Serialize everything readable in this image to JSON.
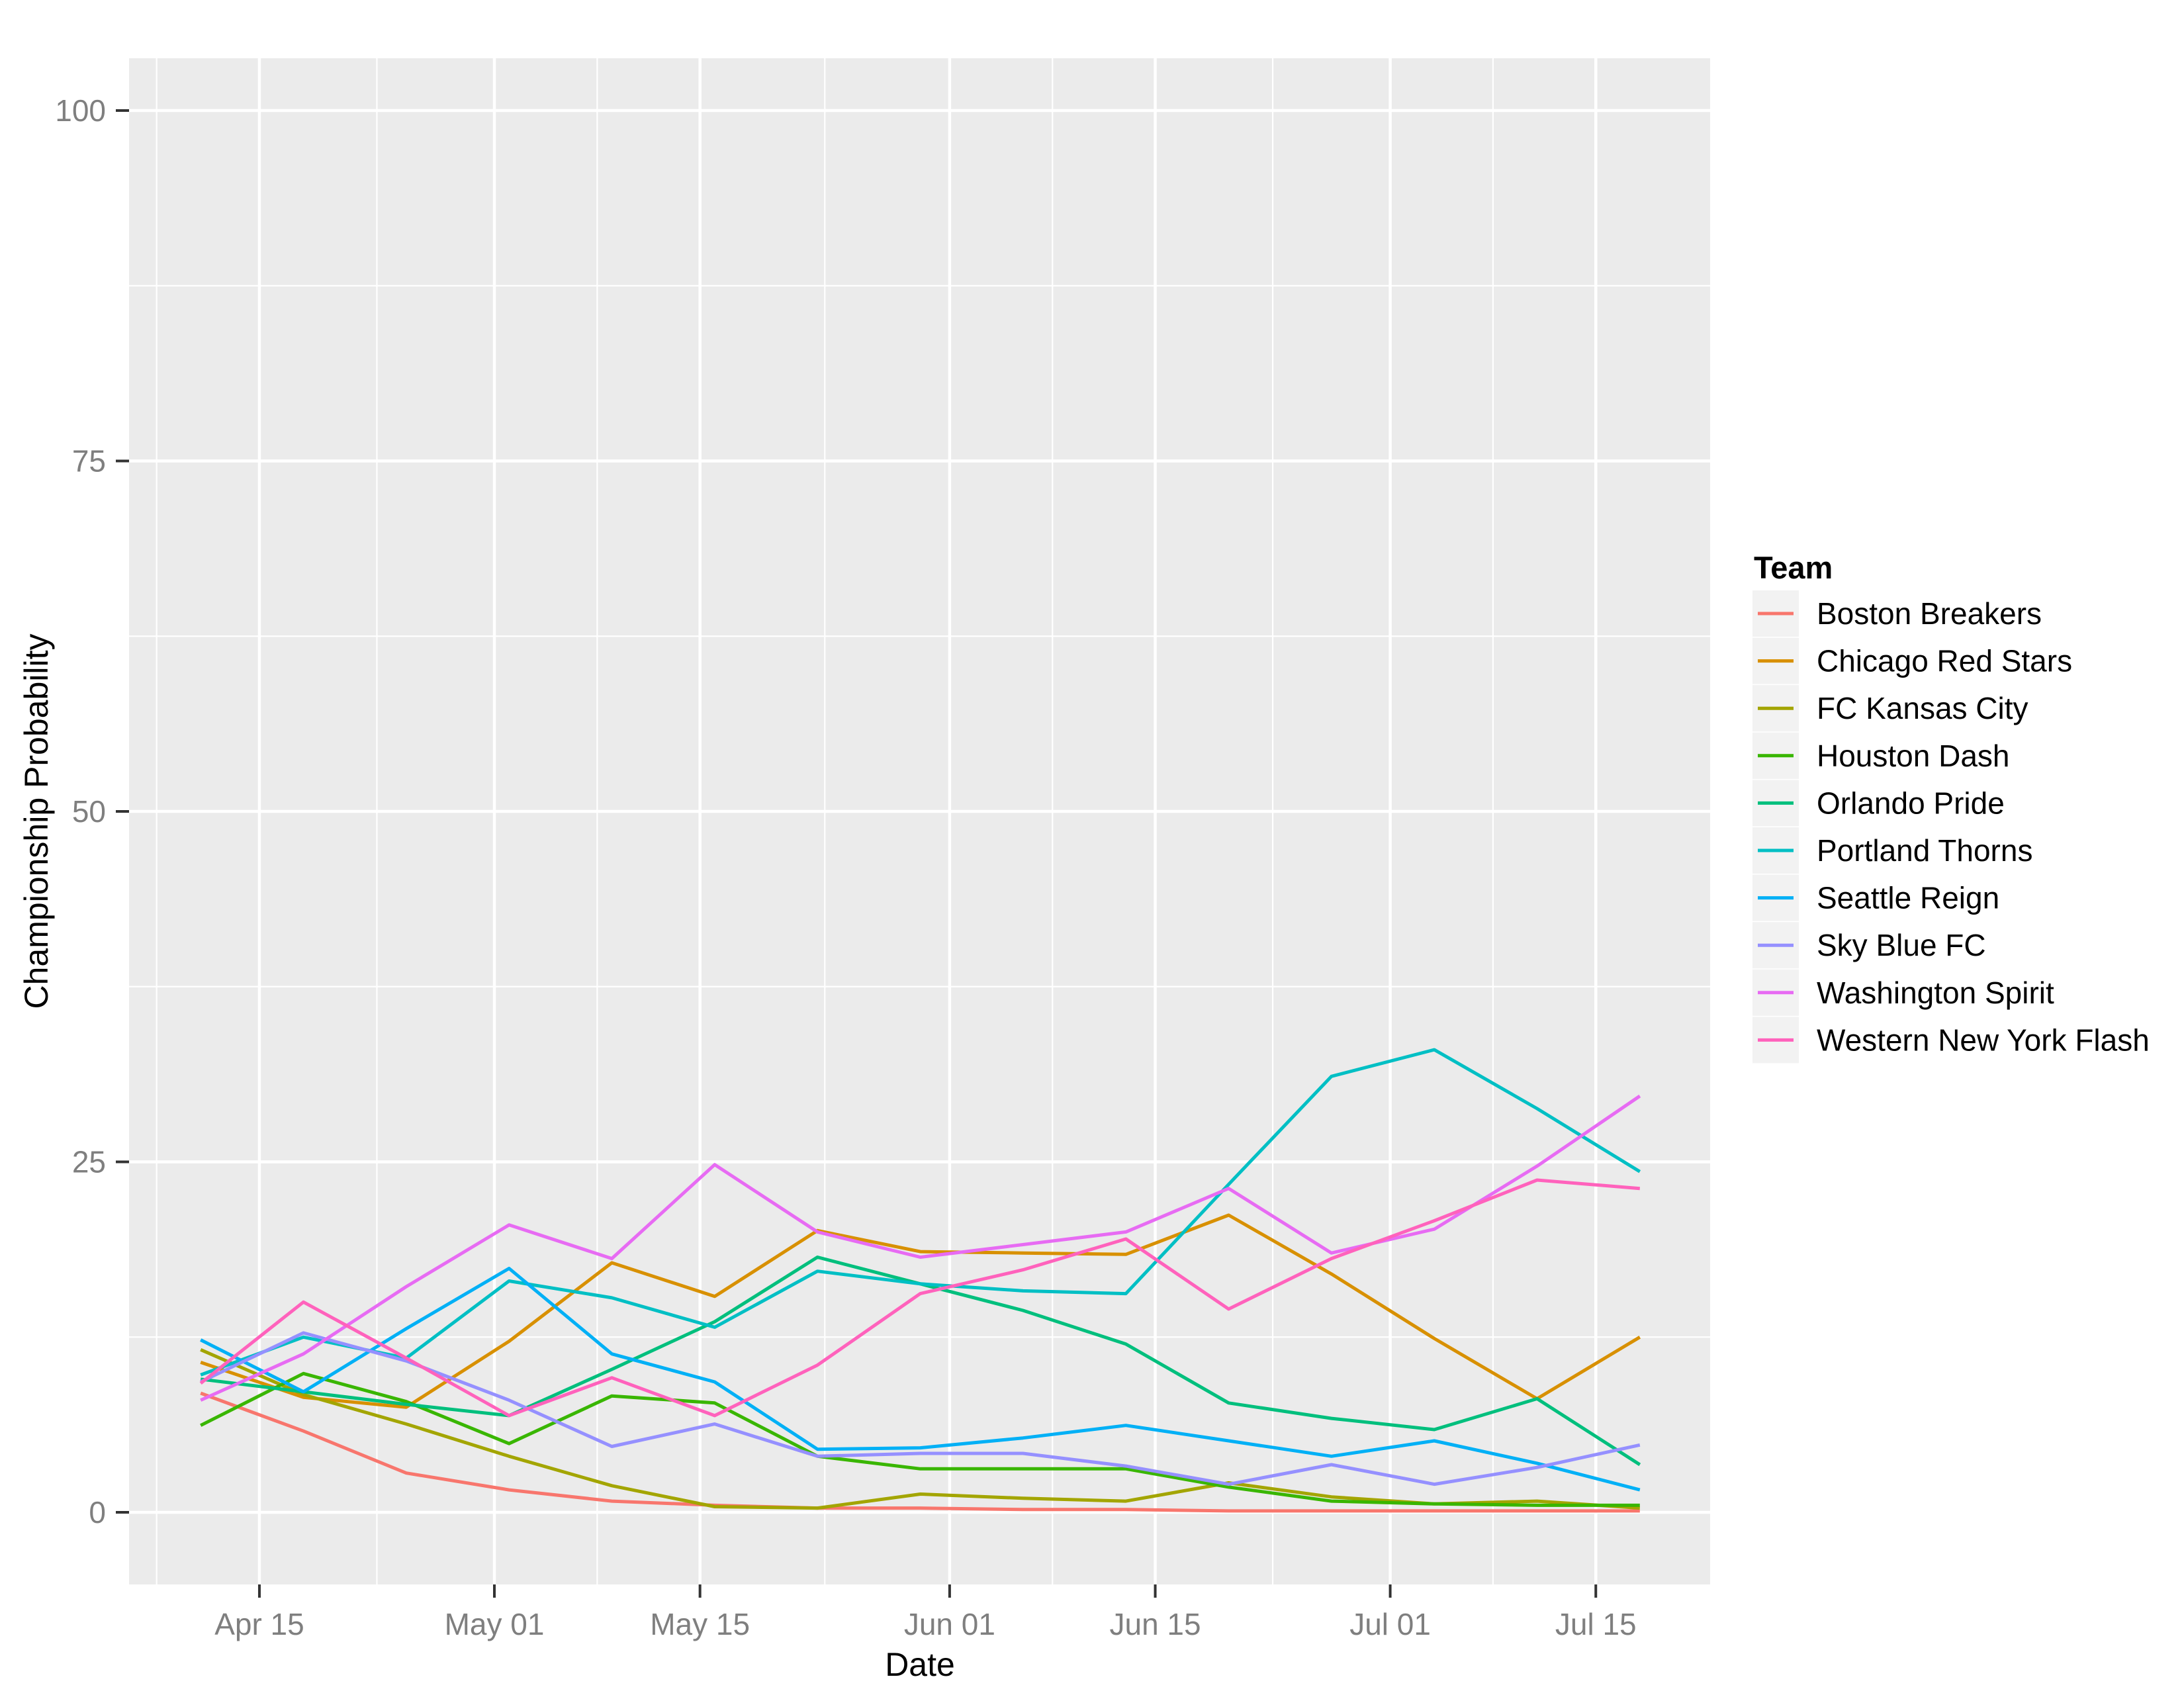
{
  "figure": {
    "x_axis_title": "Date",
    "y_axis_title": "Championship Probability",
    "legend_title": "Team",
    "colors": {
      "background": "#FFFFFF",
      "panel": "#EBEBEB",
      "grid": "#FFFFFF",
      "tick_mark": "#333333",
      "axis_text": "#7F7F7F",
      "axis_title": "#000000",
      "legend_key_bg": "#F2F2F2",
      "legend_text": "#000000"
    }
  },
  "chart_data": {
    "type": "line",
    "title": "",
    "xlabel": "Date",
    "ylabel": "Championship Probability",
    "ylim": [
      0,
      100
    ],
    "y_major_ticks": [
      0,
      25,
      50,
      75,
      100
    ],
    "y_minor_ticks": [
      12.5,
      37.5,
      62.5,
      87.5
    ],
    "grid": "major_and_minor",
    "legend_position": "right",
    "x_unit": "days_since_Apr_11",
    "x_days": [
      0,
      7,
      14,
      21,
      28,
      35,
      42,
      49,
      56,
      63,
      70,
      77,
      84,
      91,
      98
    ],
    "x_point_dates": [
      "Apr 11",
      "Apr 18",
      "Apr 25",
      "May 02",
      "May 09",
      "May 16",
      "May 23",
      "May 30",
      "Jun 06",
      "Jun 13",
      "Jun 20",
      "Jun 27",
      "Jul 04",
      "Jul 11",
      "Jul 18"
    ],
    "x_major_ticks": [
      {
        "label": "Apr 15",
        "day": 4
      },
      {
        "label": "May 01",
        "day": 20
      },
      {
        "label": "May 15",
        "day": 34
      },
      {
        "label": "Jun 01",
        "day": 51
      },
      {
        "label": "Jun 15",
        "day": 65
      },
      {
        "label": "Jul 01",
        "day": 81
      },
      {
        "label": "Jul 15",
        "day": 95
      }
    ],
    "x_minor_days": [
      -3,
      12,
      27,
      42.5,
      58,
      73,
      88
    ],
    "series": [
      {
        "name": "Boston Breakers",
        "color": "#F8766D",
        "values": [
          8.5,
          5.8,
          2.8,
          1.6,
          0.8,
          0.5,
          0.3,
          0.3,
          0.2,
          0.2,
          0.1,
          0.1,
          0.1,
          0.1,
          0.1
        ]
      },
      {
        "name": "Chicago Red Stars",
        "color": "#D89000",
        "values": [
          10.7,
          8.2,
          7.5,
          12.2,
          17.8,
          15.4,
          20.1,
          18.6,
          18.5,
          18.4,
          21.2,
          17.0,
          12.4,
          8.1,
          12.5
        ]
      },
      {
        "name": "FC Kansas City",
        "color": "#A3A500",
        "values": [
          11.6,
          8.4,
          6.3,
          4.0,
          1.9,
          0.4,
          0.3,
          1.3,
          1.0,
          0.8,
          2.1,
          1.1,
          0.6,
          0.8,
          0.3
        ]
      },
      {
        "name": "Houston Dash",
        "color": "#39B600",
        "values": [
          6.2,
          9.9,
          7.9,
          4.9,
          8.3,
          7.8,
          4.0,
          3.1,
          3.1,
          3.1,
          1.8,
          0.8,
          0.6,
          0.5,
          0.5
        ]
      },
      {
        "name": "Orlando Pride",
        "color": "#00BF7D",
        "values": [
          9.5,
          8.6,
          7.7,
          6.9,
          10.2,
          13.6,
          18.2,
          16.3,
          14.4,
          12.0,
          7.8,
          6.7,
          5.9,
          8.1,
          3.4
        ]
      },
      {
        "name": "Portland Thorns",
        "color": "#00BFC4",
        "values": [
          9.8,
          12.5,
          11.0,
          16.5,
          15.3,
          13.2,
          17.2,
          16.3,
          15.8,
          15.6,
          23.4,
          31.1,
          33.0,
          28.8,
          24.3
        ]
      },
      {
        "name": "Seattle Reign",
        "color": "#00B0F6",
        "values": [
          12.3,
          8.6,
          13.1,
          17.4,
          11.3,
          9.3,
          4.5,
          4.6,
          5.3,
          6.2,
          5.1,
          4.0,
          5.1,
          3.5,
          1.6
        ]
      },
      {
        "name": "Sky Blue FC",
        "color": "#9590FF",
        "values": [
          9.3,
          12.8,
          10.8,
          8.0,
          4.7,
          6.3,
          4.0,
          4.2,
          4.2,
          3.3,
          2.0,
          3.4,
          2.0,
          3.2,
          4.8
        ]
      },
      {
        "name": "Washington Spirit",
        "color": "#E76BF3",
        "values": [
          8.0,
          11.3,
          16.1,
          20.5,
          18.1,
          24.8,
          20.0,
          18.2,
          19.1,
          20.0,
          23.1,
          18.5,
          20.2,
          24.7,
          29.7
        ]
      },
      {
        "name": "Western New York Flash",
        "color": "#FF62BC",
        "values": [
          9.2,
          15.0,
          11.0,
          6.9,
          9.6,
          6.9,
          10.5,
          15.6,
          17.3,
          19.5,
          14.5,
          18.1,
          20.8,
          23.7,
          23.1
        ]
      }
    ]
  }
}
